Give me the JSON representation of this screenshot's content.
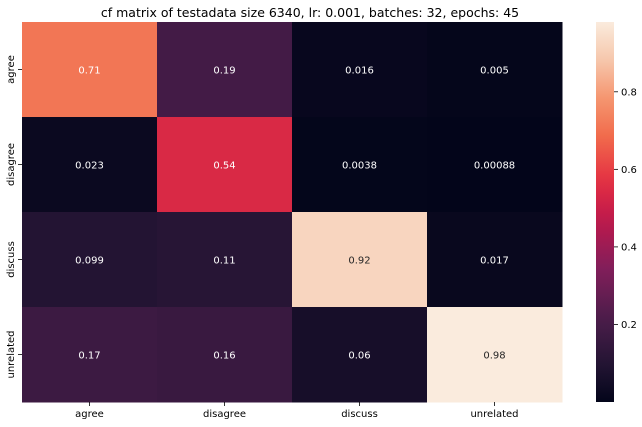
{
  "chart_data": {
    "type": "heatmap",
    "title": "cf matrix of testadata size 6340, lr: 0.001, batches: 32, epochs: 45",
    "x_labels": [
      "agree",
      "disagree",
      "discuss",
      "unrelated"
    ],
    "y_labels": [
      "agree",
      "disagree",
      "discuss",
      "unrelated"
    ],
    "values": [
      [
        0.71,
        0.19,
        0.016,
        0.005
      ],
      [
        0.023,
        0.54,
        0.0038,
        0.00088
      ],
      [
        0.099,
        0.11,
        0.92,
        0.017
      ],
      [
        0.17,
        0.16,
        0.06,
        0.98
      ]
    ],
    "value_labels": [
      [
        "0.71",
        "0.19",
        "0.016",
        "0.005"
      ],
      [
        "0.023",
        "0.54",
        "0.0038",
        "0.00088"
      ],
      [
        "0.099",
        "0.11",
        "0.92",
        "0.017"
      ],
      [
        "0.17",
        "0.16",
        "0.06",
        "0.98"
      ]
    ],
    "colorbar": {
      "colormap": "rocket",
      "range": [
        0,
        0.98
      ],
      "ticks": [
        0.2,
        0.4,
        0.6,
        0.8
      ],
      "tick_labels": [
        "0.2",
        "0.4",
        "0.6",
        "0.8"
      ]
    }
  }
}
